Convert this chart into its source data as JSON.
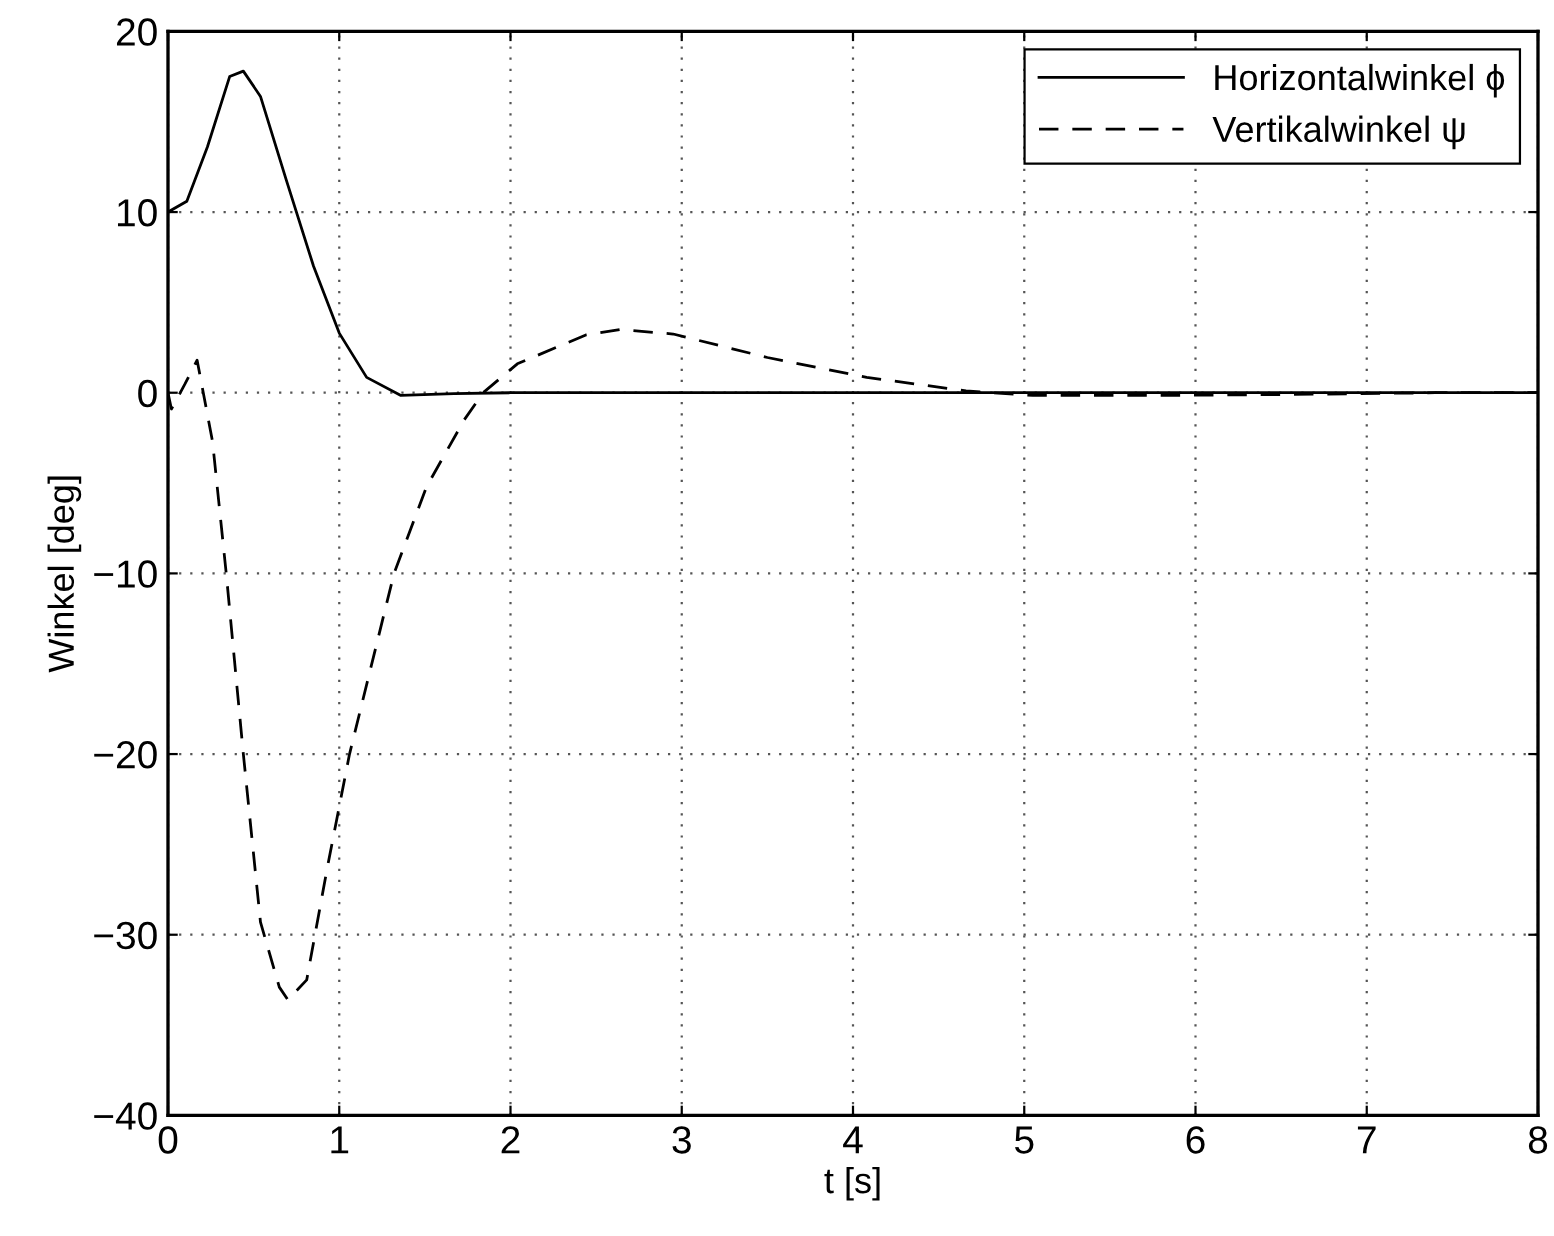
{
  "chart_data": {
    "type": "line",
    "xlabel": "t [s]",
    "ylabel": "Winkel [deg]",
    "xlim": [
      0,
      8
    ],
    "ylim": [
      -40,
      20
    ],
    "xticks": [
      0,
      1,
      2,
      3,
      4,
      5,
      6,
      7,
      8
    ],
    "yticks": [
      -40,
      -30,
      -20,
      -10,
      0,
      10,
      20
    ],
    "grid": true,
    "legend": "top right",
    "marker": "none",
    "series": [
      {
        "name": "Horizontalwinkel ϕ",
        "color": "#000000",
        "line_style": "solid",
        "x": [
          0,
          0.11,
          0.23,
          0.36,
          0.44,
          0.54,
          0.69,
          0.85,
          1.0,
          1.16,
          1.36,
          1.67,
          2.0,
          3.0,
          4.0,
          5.0,
          6.0,
          7.0,
          8.0
        ],
        "values": [
          10,
          10.6,
          13.6,
          17.5,
          17.8,
          16.4,
          11.8,
          7.0,
          3.3,
          0.85,
          -0.15,
          -0.05,
          0,
          0,
          0,
          0,
          0,
          0,
          0
        ]
      },
      {
        "name": "Vertikalwinkel ψ",
        "color": "#000000",
        "line_style": "dashed",
        "x": [
          0,
          0.02,
          0.1,
          0.17,
          0.26,
          0.34,
          0.44,
          0.54,
          0.65,
          0.7,
          0.81,
          0.93,
          1.06,
          1.32,
          1.51,
          1.73,
          1.84,
          2.04,
          2.44,
          2.64,
          2.95,
          3.5,
          4.08,
          4.66,
          5.05,
          5.83,
          6.53,
          7.4,
          8.0
        ],
        "values": [
          0,
          -0.9,
          0.5,
          1.8,
          -2.7,
          -10,
          -20,
          -29.3,
          -32.9,
          -33.6,
          -32.5,
          -26.3,
          -20,
          -10,
          -5.2,
          -1.5,
          0,
          1.6,
          3.2,
          3.5,
          3.25,
          1.95,
          0.85,
          0.1,
          -0.15,
          -0.15,
          -0.1,
          0,
          0
        ]
      }
    ]
  }
}
